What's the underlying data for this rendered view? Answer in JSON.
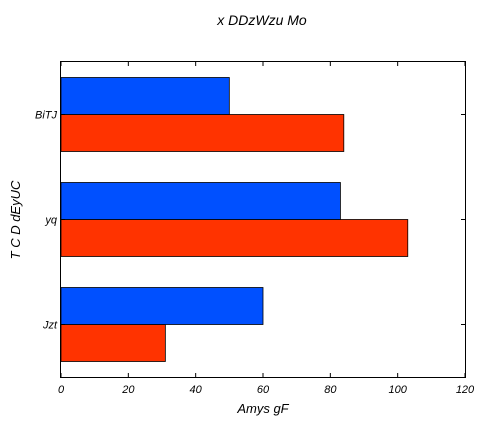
{
  "chart_data": {
    "type": "bar",
    "orientation": "horizontal",
    "title": "x DDzWzu Mo",
    "xlabel": "Amys gF",
    "ylabel": "T  C D  dEyUC",
    "categories": [
      "Jzt",
      "yq",
      "BiTJ"
    ],
    "series": [
      {
        "color": "#ff3300",
        "values": [
          31,
          103,
          84
        ]
      },
      {
        "color": "#0050ff",
        "values": [
          60,
          83,
          50
        ]
      }
    ],
    "xlim": [
      0,
      120
    ],
    "xticks": [
      0,
      20,
      40,
      60,
      80,
      100,
      120
    ],
    "grid": false,
    "legend": "none"
  }
}
